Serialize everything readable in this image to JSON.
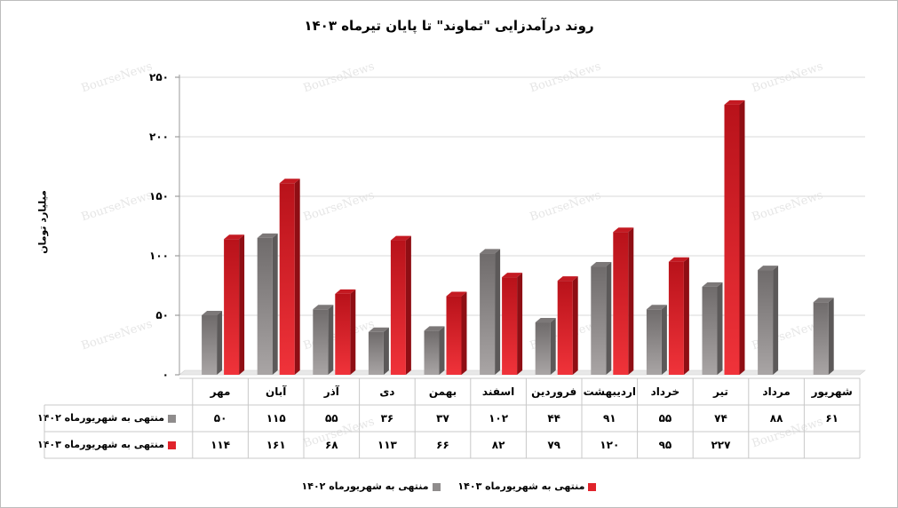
{
  "title": "روند درآمدزایی \"تماوند\" تا پایان تیرماه ۱۴۰۳",
  "watermark": "BourseNews",
  "colors": {
    "grey": "#8f8c8c",
    "red": "#e0232b",
    "grid": "#d9d9d9"
  },
  "chart_data": {
    "type": "bar",
    "title": "روند درآمدزایی \"تماوند\" تا پایان تیرماه ۱۴۰۳",
    "ylabel": "میلیارد تومان",
    "xlabel": "",
    "ylim": [
      0,
      250
    ],
    "yticks": [
      0,
      50,
      100,
      150,
      200,
      250
    ],
    "ytick_labels": [
      "۰",
      "۵۰",
      "۱۰۰",
      "۱۵۰",
      "۲۰۰",
      "۲۵۰"
    ],
    "grid": true,
    "legend_position": "bottom",
    "categories": [
      "مهر",
      "آبان",
      "آذر",
      "دی",
      "بهمن",
      "اسفند",
      "فروردین",
      "اردیبهشت",
      "خرداد",
      "تیر",
      "مرداد",
      "شهریور"
    ],
    "series": [
      {
        "name": "منتهی به شهریورماه ۱۴۰۲",
        "color": "#8f8c8c",
        "values": [
          50,
          115,
          55,
          36,
          37,
          102,
          44,
          91,
          55,
          74,
          88,
          61
        ],
        "labels": [
          "۵۰",
          "۱۱۵",
          "۵۵",
          "۳۶",
          "۳۷",
          "۱۰۲",
          "۴۴",
          "۹۱",
          "۵۵",
          "۷۴",
          "۸۸",
          "۶۱"
        ]
      },
      {
        "name": "منتهی به شهریورماه ۱۴۰۳",
        "color": "#e0232b",
        "values": [
          114,
          161,
          68,
          113,
          66,
          82,
          79,
          120,
          95,
          227,
          null,
          null
        ],
        "labels": [
          "۱۱۴",
          "۱۶۱",
          "۶۸",
          "۱۱۳",
          "۶۶",
          "۸۲",
          "۷۹",
          "۱۲۰",
          "۹۵",
          "۲۲۷",
          "",
          ""
        ]
      }
    ]
  }
}
